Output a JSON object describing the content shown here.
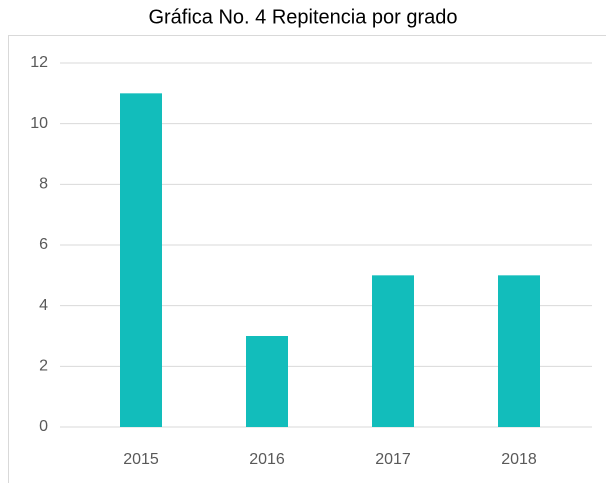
{
  "chart_data": {
    "type": "bar",
    "title": "Gráfica No. 4 Repitencia por grado",
    "categories": [
      "2015",
      "2016",
      "2017",
      "2018"
    ],
    "values": [
      11,
      3,
      5,
      5
    ],
    "color": "#12bdbb",
    "ylim": [
      0,
      12
    ],
    "yticks": [
      0,
      2,
      4,
      6,
      8,
      10,
      12
    ],
    "grid": true
  }
}
